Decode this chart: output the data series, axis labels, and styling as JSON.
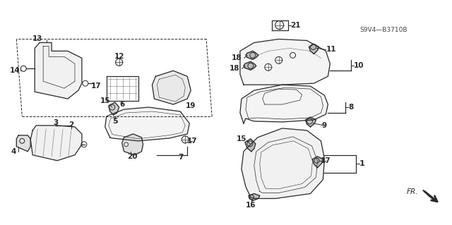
{
  "background_color": "#ffffff",
  "diagram_code": "S9V4—B3710B",
  "fig_width": 6.4,
  "fig_height": 3.19,
  "dpi": 100,
  "line_color": "#2a2a2a",
  "light_gray": "#999999"
}
